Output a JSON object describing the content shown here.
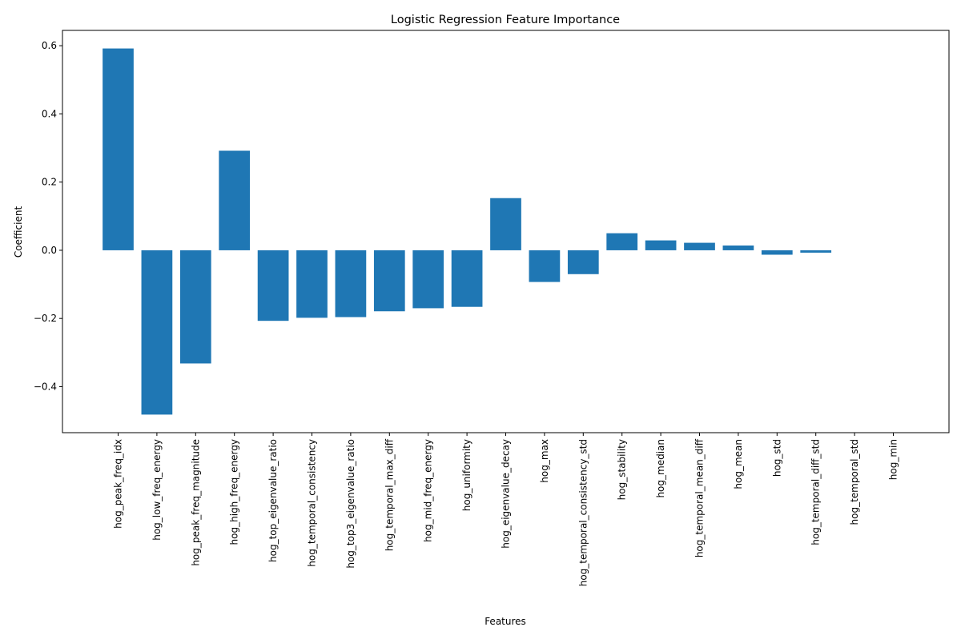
{
  "chart_data": {
    "type": "bar",
    "title": "Logistic Regression Feature Importance",
    "xlabel": "Features",
    "ylabel": "Coefficient",
    "ylim": [
      -0.535,
      0.645
    ],
    "yticks": [
      -0.4,
      -0.2,
      0.0,
      0.2,
      0.4,
      0.6
    ],
    "ytick_labels": [
      "−0.4",
      "−0.2",
      "0.0",
      "0.2",
      "0.4",
      "0.6"
    ],
    "grid": false,
    "bar_color": "#1f77b4",
    "categories": [
      "hog_peak_freq_idx",
      "hog_low_freq_energy",
      "hog_peak_freq_magnitude",
      "hog_high_freq_energy",
      "hog_top_eigenvalue_ratio",
      "hog_temporal_consistency",
      "hog_top3_eigenvalue_ratio",
      "hog_temporal_max_diff",
      "hog_mid_freq_energy",
      "hog_uniformity",
      "hog_eigenvalue_decay",
      "hog_max",
      "hog_temporal_consistency_std",
      "hog_stability",
      "hog_median",
      "hog_temporal_mean_diff",
      "hog_mean",
      "hog_std",
      "hog_temporal_diff_std",
      "hog_temporal_std",
      "hog_min"
    ],
    "values": [
      0.592,
      -0.482,
      -0.332,
      0.292,
      -0.207,
      -0.198,
      -0.196,
      -0.179,
      -0.17,
      -0.166,
      0.153,
      -0.093,
      -0.07,
      0.05,
      0.029,
      0.022,
      0.014,
      -0.013,
      -0.007,
      0.0,
      0.0
    ]
  }
}
